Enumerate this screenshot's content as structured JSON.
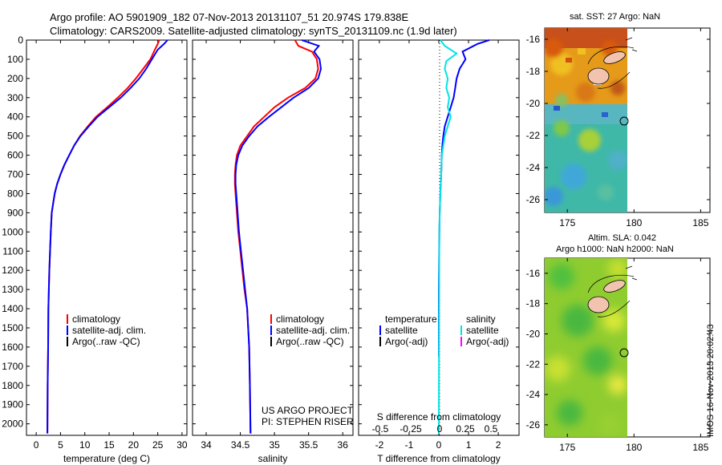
{
  "header": {
    "line1": "Argo profile: AO 5901909_182 07-Nov-2013 20131107_51 20.974S 179.838E",
    "line2": "Climatology: CARS2009. Satellite-adjusted climatology: synTS_20131109.nc (1.9d later)"
  },
  "stamp": "IMOS 16-Nov-2013 20:02:43",
  "colors": {
    "climatology": "#ff0000",
    "satellite": "#0000ff",
    "argo": "#000000",
    "cyan": "#00e5e5",
    "magenta": "#ff00ff"
  },
  "chart_data": [
    {
      "id": "temperature",
      "type": "line",
      "xlabel": "temperature (deg C)",
      "ylabel": "",
      "xlim": [
        -2,
        31
      ],
      "ylim": [
        2060,
        0
      ],
      "xticks": [
        0,
        5,
        10,
        15,
        20,
        25,
        30
      ],
      "yticks": [
        0,
        100,
        200,
        300,
        400,
        500,
        600,
        700,
        800,
        900,
        1000,
        1100,
        1200,
        1300,
        1400,
        1500,
        1600,
        1700,
        1800,
        1900,
        2000
      ],
      "legend": [
        "climatology",
        "satellite-adj. clim.",
        "Argo(..raw -QC)"
      ],
      "series": [
        {
          "name": "climatology",
          "color": "climatology",
          "x": [
            25.3,
            25.0,
            24.4,
            23.5,
            22.0,
            20.5,
            18.8,
            16.8,
            14.6,
            12.3,
            10.6,
            9.0,
            7.8,
            6.8,
            5.8,
            5.0,
            4.3,
            3.8,
            3.5,
            3.2,
            3.0,
            2.85,
            2.7,
            2.6,
            2.5,
            2.45,
            2.35,
            2.3
          ],
          "y": [
            0,
            20,
            50,
            100,
            150,
            200,
            250,
            300,
            350,
            400,
            450,
            500,
            550,
            600,
            650,
            700,
            750,
            800,
            850,
            900,
            1000,
            1100,
            1200,
            1300,
            1400,
            1600,
            1800,
            2050
          ]
        },
        {
          "name": "satellite-adj. clim.",
          "color": "satellite",
          "x": [
            27.0,
            26.3,
            25.0,
            23.8,
            22.6,
            21.2,
            19.4,
            17.4,
            15.0,
            12.6,
            10.8,
            9.1,
            7.8,
            6.8,
            5.8,
            5.0,
            4.3,
            3.8,
            3.5,
            3.2,
            3.0,
            2.85,
            2.7,
            2.6,
            2.5,
            2.45,
            2.35,
            2.3
          ],
          "y": [
            0,
            20,
            50,
            100,
            150,
            200,
            250,
            300,
            350,
            400,
            450,
            500,
            550,
            600,
            650,
            700,
            750,
            800,
            850,
            900,
            1000,
            1100,
            1200,
            1300,
            1400,
            1600,
            1800,
            2050
          ]
        }
      ]
    },
    {
      "id": "salinity",
      "type": "line",
      "xlabel": "salinity",
      "ylabel": "",
      "xlim": [
        33.8,
        36.15
      ],
      "ylim": [
        2060,
        0
      ],
      "xticks": [
        34,
        34.5,
        35,
        35.5,
        36
      ],
      "legend": [
        "climatology",
        "satellite-adj. clim.",
        "Argo(..raw -QC)"
      ],
      "annotation": [
        "US ARGO PROJECT",
        "PI: STEPHEN RISER"
      ],
      "series": [
        {
          "name": "climatology",
          "color": "climatology",
          "x": [
            35.3,
            35.35,
            35.55,
            35.62,
            35.64,
            35.6,
            35.45,
            35.2,
            35.0,
            34.85,
            34.7,
            34.6,
            34.5,
            34.45,
            34.43,
            34.42,
            34.42,
            34.43,
            34.45,
            34.47,
            34.5,
            34.53,
            34.56,
            34.6,
            34.63,
            34.64,
            34.65
          ],
          "y": [
            0,
            30,
            60,
            100,
            150,
            200,
            250,
            300,
            350,
            400,
            450,
            500,
            550,
            600,
            650,
            700,
            750,
            800,
            900,
            1000,
            1100,
            1200,
            1300,
            1400,
            1600,
            1800,
            2050
          ]
        },
        {
          "name": "satellite-adj. clim.",
          "color": "satellite",
          "x": [
            35.4,
            35.65,
            35.58,
            35.66,
            35.68,
            35.64,
            35.5,
            35.28,
            35.1,
            34.92,
            34.75,
            34.63,
            34.53,
            34.47,
            34.44,
            34.43,
            34.43,
            34.44,
            34.46,
            34.48,
            34.51,
            34.54,
            34.57,
            34.6,
            34.63,
            34.64,
            34.65
          ],
          "y": [
            0,
            30,
            60,
            100,
            150,
            200,
            250,
            300,
            350,
            400,
            450,
            500,
            550,
            600,
            650,
            700,
            750,
            800,
            900,
            1000,
            1100,
            1200,
            1300,
            1400,
            1600,
            1800,
            2050
          ]
        }
      ]
    },
    {
      "id": "differences",
      "type": "line",
      "xlabel": "T difference from climatology",
      "top_label": "S difference from climatology",
      "xlim": [
        -2.7,
        2.7
      ],
      "ylim": [
        2060,
        0
      ],
      "xticks": [
        -2,
        -1,
        0,
        1,
        2
      ],
      "xticklabels": [
        "-2",
        "-1",
        "0",
        "1",
        "2"
      ],
      "sticklabels": [
        "-0.5",
        "-0.25",
        "0",
        "0.25",
        "0.5"
      ],
      "legend_left": [
        "temperature",
        "satellite",
        "Argo(-adj)"
      ],
      "legend_right": [
        "salinity",
        "satellite",
        "Argo(-adj)"
      ],
      "series": [
        {
          "name": "temperature satellite",
          "color": "satellite",
          "x": [
            1.7,
            1.3,
            0.8,
            0.9,
            0.7,
            0.6,
            0.55,
            0.5,
            0.4,
            0.3,
            0.2,
            0.15,
            0.12,
            0.1,
            0.08,
            0.05,
            0.03,
            0.02,
            0.0,
            0.0
          ],
          "y": [
            0,
            20,
            60,
            100,
            150,
            200,
            250,
            300,
            350,
            400,
            450,
            500,
            550,
            600,
            700,
            800,
            900,
            1000,
            1300,
            1650
          ]
        },
        {
          "name": "salinity satellite",
          "color": "cyan",
          "x": [
            0.05,
            0.2,
            0.6,
            0.25,
            0.2,
            0.3,
            0.25,
            0.35,
            0.3,
            0.4,
            0.3,
            0.2,
            0.15,
            0.1,
            0.08,
            0.05,
            0.03,
            0.02,
            0.01,
            0.0
          ],
          "y": [
            0,
            30,
            70,
            110,
            150,
            200,
            250,
            300,
            350,
            400,
            450,
            500,
            550,
            600,
            700,
            800,
            900,
            1000,
            1300,
            2050
          ]
        }
      ]
    }
  ],
  "maps": [
    {
      "id": "sst-map",
      "title": "sat. SST: 27 Argo: NaN",
      "xticks": [
        "175",
        "180",
        "185"
      ],
      "yticks": [
        "-16",
        "-18",
        "-20",
        "-22",
        "-24",
        "-26"
      ]
    },
    {
      "id": "sla-map",
      "title_line1": "Altim. SLA: 0.042",
      "title_line2": "Argo h1000: NaN h2000: NaN",
      "xticks": [
        "175",
        "180",
        "185"
      ],
      "yticks": [
        "-16",
        "-18",
        "-20",
        "-22",
        "-24",
        "-26"
      ]
    }
  ]
}
